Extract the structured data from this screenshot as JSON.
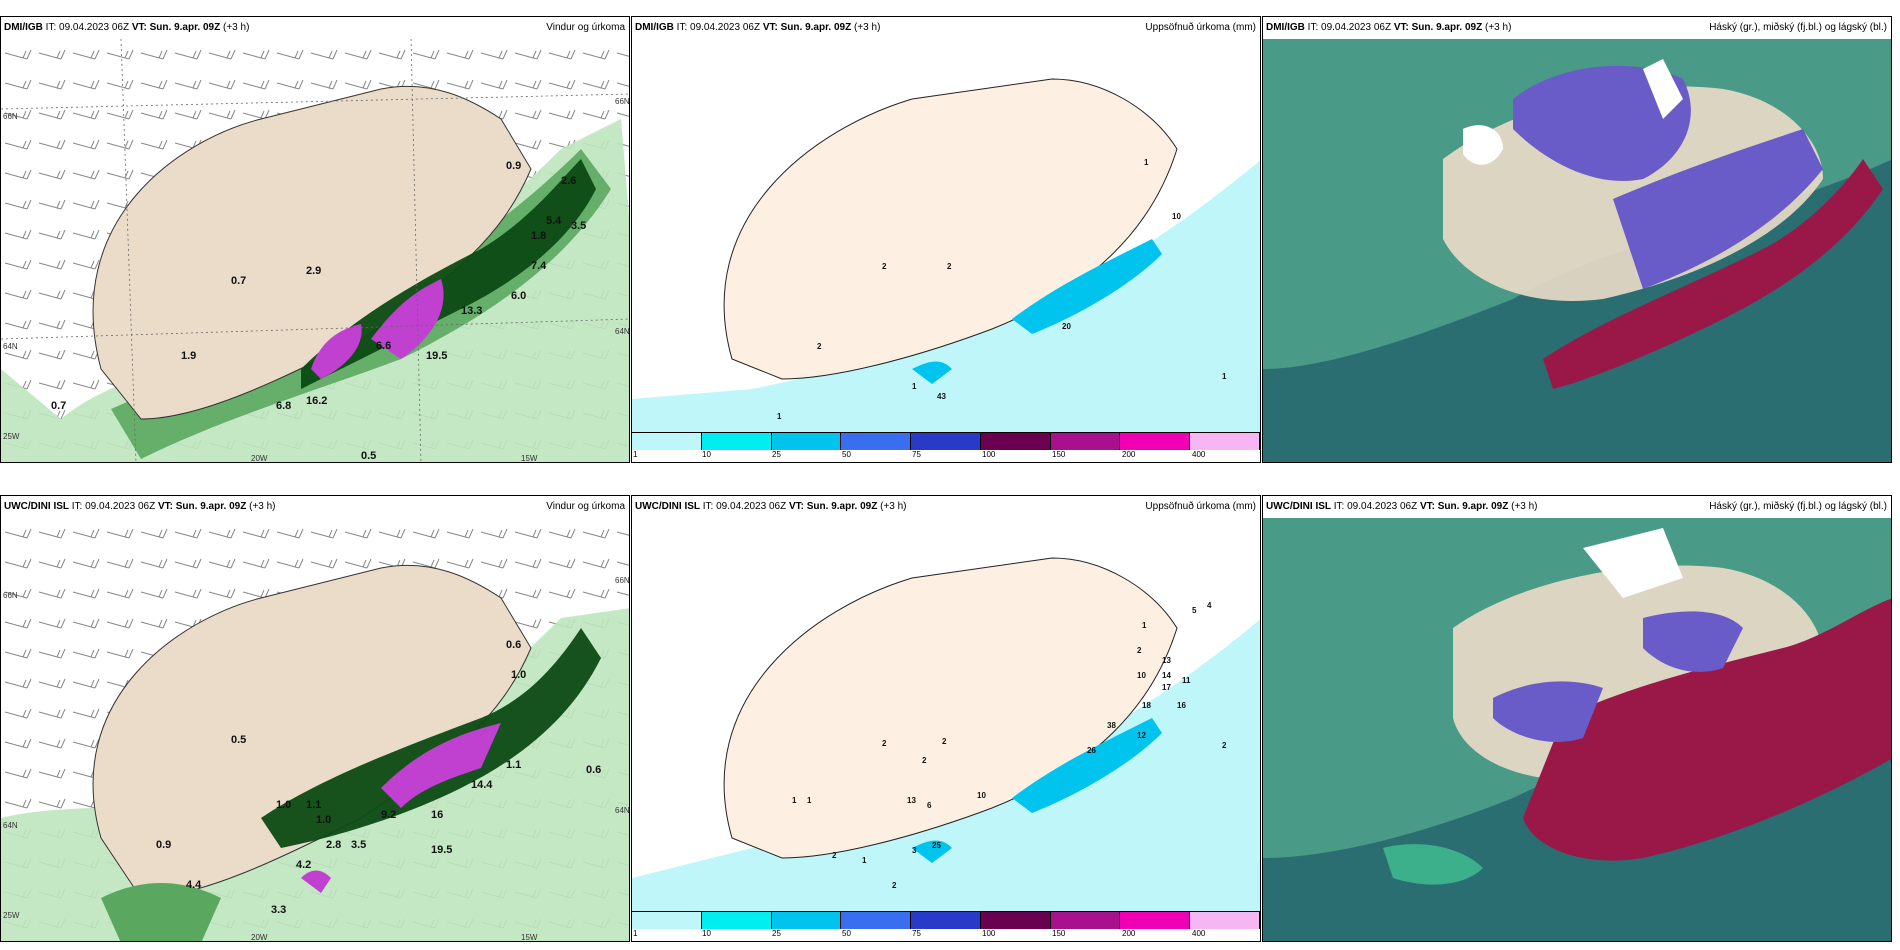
{
  "panels": {
    "p1": {
      "source": "DMI/IGB",
      "it": "IT: 09.04.2023 06Z",
      "vt": "VT: Sun. 9.apr. 09Z",
      "lead": "(+3 h)",
      "product": "Vindur og úrkoma",
      "labels": [
        "0.9",
        "2.6",
        "5.4",
        "3.5",
        "1.8",
        "7.4",
        "6.0",
        "13.3",
        "6.6",
        "19.5",
        "16.2",
        "6.8",
        "0.7",
        "2.9",
        "0.7",
        "1.9",
        "0.5"
      ],
      "coords": [
        "66N",
        "66N",
        "64N",
        "64N",
        "25W",
        "20W",
        "15W"
      ]
    },
    "p2": {
      "source": "DMI/IGB",
      "it": "IT: 09.04.2023 06Z",
      "vt": "VT: Sun. 9.apr. 09Z",
      "lead": "(+3 h)",
      "product": "Uppsöfnuð úrkoma (mm)",
      "labels": [
        "1",
        "10",
        "2",
        "2",
        "2",
        "1",
        "1",
        "43",
        "20",
        "1"
      ]
    },
    "p3": {
      "source": "DMI/IGB",
      "it": "IT: 09.04.2023 06Z",
      "vt": "VT: Sun. 9.apr. 09Z",
      "lead": "(+3 h)",
      "product": "Háský (gr.), miðský (fj.bl.) og lágský (bl.)"
    },
    "p4": {
      "source": "UWC/DINI ISL",
      "it": "IT: 09.04.2023 06Z",
      "vt": "VT: Sun. 9.apr. 09Z",
      "lead": "(+3 h)",
      "product": "Vindur og úrkoma",
      "labels": [
        "0.6",
        "1.0",
        "1.1",
        "0.5",
        "1.0",
        "1.1",
        "1.0",
        "2.8",
        "3.5",
        "9.2",
        "16",
        "19.5",
        "14.4",
        "0.6",
        "0.9",
        "4.2",
        "4.4",
        "3.3"
      ],
      "coords": [
        "66N",
        "66N",
        "64N",
        "64N",
        "25W",
        "20W",
        "15W"
      ]
    },
    "p5": {
      "source": "UWC/DINI ISL",
      "it": "IT: 09.04.2023 06Z",
      "vt": "VT: Sun. 9.apr. 09Z",
      "lead": "(+3 h)",
      "product": "Uppsöfnuð úrkoma (mm)",
      "labels": [
        "1",
        "5",
        "4",
        "2",
        "13",
        "10",
        "14",
        "17",
        "11",
        "16",
        "18",
        "12",
        "38",
        "26",
        "2",
        "2",
        "2",
        "2",
        "1",
        "1",
        "13",
        "6",
        "10",
        "2",
        "1",
        "3",
        "25",
        "2"
      ]
    },
    "p6": {
      "source": "UWC/DINI ISL",
      "it": "IT: 09.04.2023 06Z",
      "vt": "VT: Sun. 9.apr. 09Z",
      "lead": "(+3 h)",
      "product": "Háský (gr.), miðský (fj.bl.) og lágský (bl.)"
    }
  },
  "legend": {
    "ticks": [
      "1",
      "10",
      "25",
      "50",
      "75",
      "100",
      "150",
      "200",
      "400"
    ],
    "colors": [
      "#bff6fa",
      "#00eef0",
      "#00c4ee",
      "#3a6ef0",
      "#2a3ac8",
      "#6a0050",
      "#a8108e",
      "#f000b4",
      "#f6b6f4"
    ]
  },
  "colors": {
    "land": "#ebdcc9",
    "land_p2": "#fdf0e3",
    "dark_green": "#0c4a14",
    "mid_green": "#5aa860",
    "light_green": "#bfe6be",
    "magenta": "#c040d0",
    "cloud_sea": "#2a6e72",
    "cloud_purple": "#6a5cc8",
    "cloud_red": "#9a1848",
    "cloud_teal": "#3bb08a"
  }
}
